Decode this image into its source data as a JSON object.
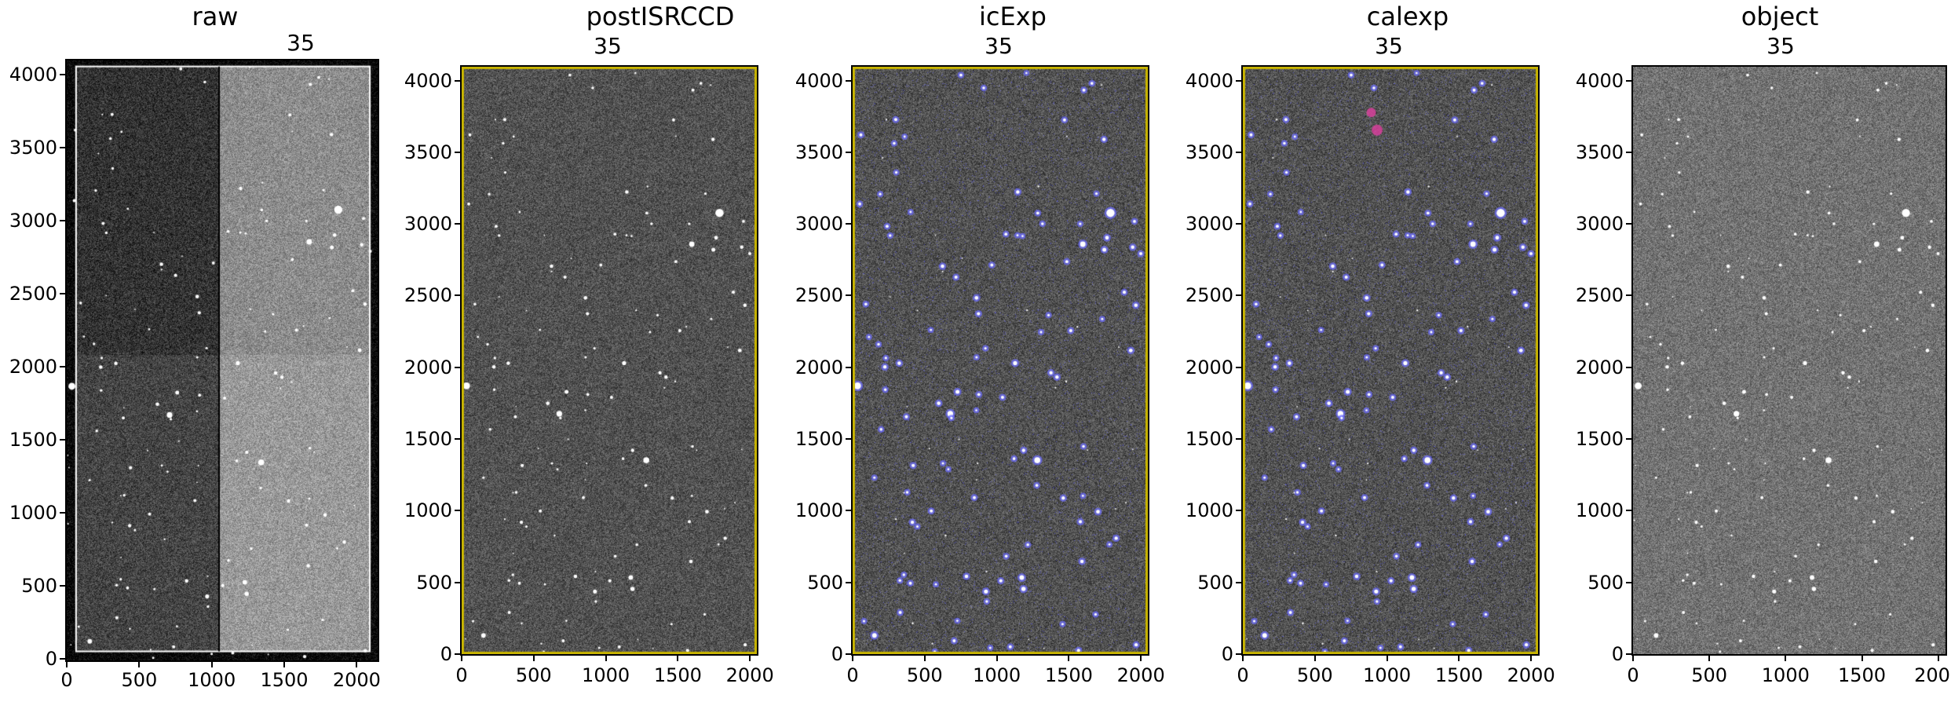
{
  "figure": {
    "panels": [
      {
        "id": "raw",
        "title": "raw",
        "subtitle": "35",
        "xticks": [
          "0",
          "500",
          "1000",
          "1500",
          "2000"
        ],
        "yticks": [
          "0",
          "500",
          "1000",
          "1500",
          "2000",
          "2500",
          "3000",
          "3500",
          "4000"
        ],
        "shade_left": 0.26,
        "shade_right": 0.58,
        "mask_color": null
      },
      {
        "id": "postISRCCD",
        "title": "postISRCCD",
        "subtitle": "35",
        "xticks": [
          "0",
          "500",
          "1000",
          "1500",
          "2000"
        ],
        "yticks": [
          "0",
          "500",
          "1000",
          "1500",
          "2000",
          "2500",
          "3000",
          "3500",
          "4000"
        ],
        "shade_left": 0.32,
        "shade_right": 0.32,
        "mask_color": null,
        "edge_color": "#c8b400"
      },
      {
        "id": "icExp",
        "title": "icExp",
        "subtitle": "35",
        "xticks": [
          "0",
          "500",
          "1000",
          "1500",
          "2000"
        ],
        "yticks": [
          "0",
          "500",
          "1000",
          "1500",
          "2000",
          "2500",
          "3000",
          "3500",
          "4000"
        ],
        "shade_left": 0.32,
        "shade_right": 0.32,
        "mask_color": "#5a5aff",
        "edge_color": "#c8b400"
      },
      {
        "id": "calexp",
        "title": "calexp",
        "subtitle": "35",
        "xticks": [
          "0",
          "500",
          "1000",
          "1500",
          "2000"
        ],
        "yticks": [
          "0",
          "500",
          "1000",
          "1500",
          "2000",
          "2500",
          "3000",
          "3500",
          "4000"
        ],
        "shade_left": 0.32,
        "shade_right": 0.32,
        "mask_color": "#5a5aff",
        "edge_color": "#c8b400",
        "highlight_color": "#e040a0"
      },
      {
        "id": "object",
        "title": "object",
        "subtitle": "35",
        "xticks": [
          "0",
          "500",
          "1000",
          "1500",
          "2000"
        ],
        "yticks": [
          "0",
          "500",
          "1000",
          "1500",
          "2000",
          "2500",
          "3000",
          "3500",
          "4000"
        ],
        "shade_left": 0.45,
        "shade_right": 0.45,
        "mask_color": null
      }
    ]
  }
}
